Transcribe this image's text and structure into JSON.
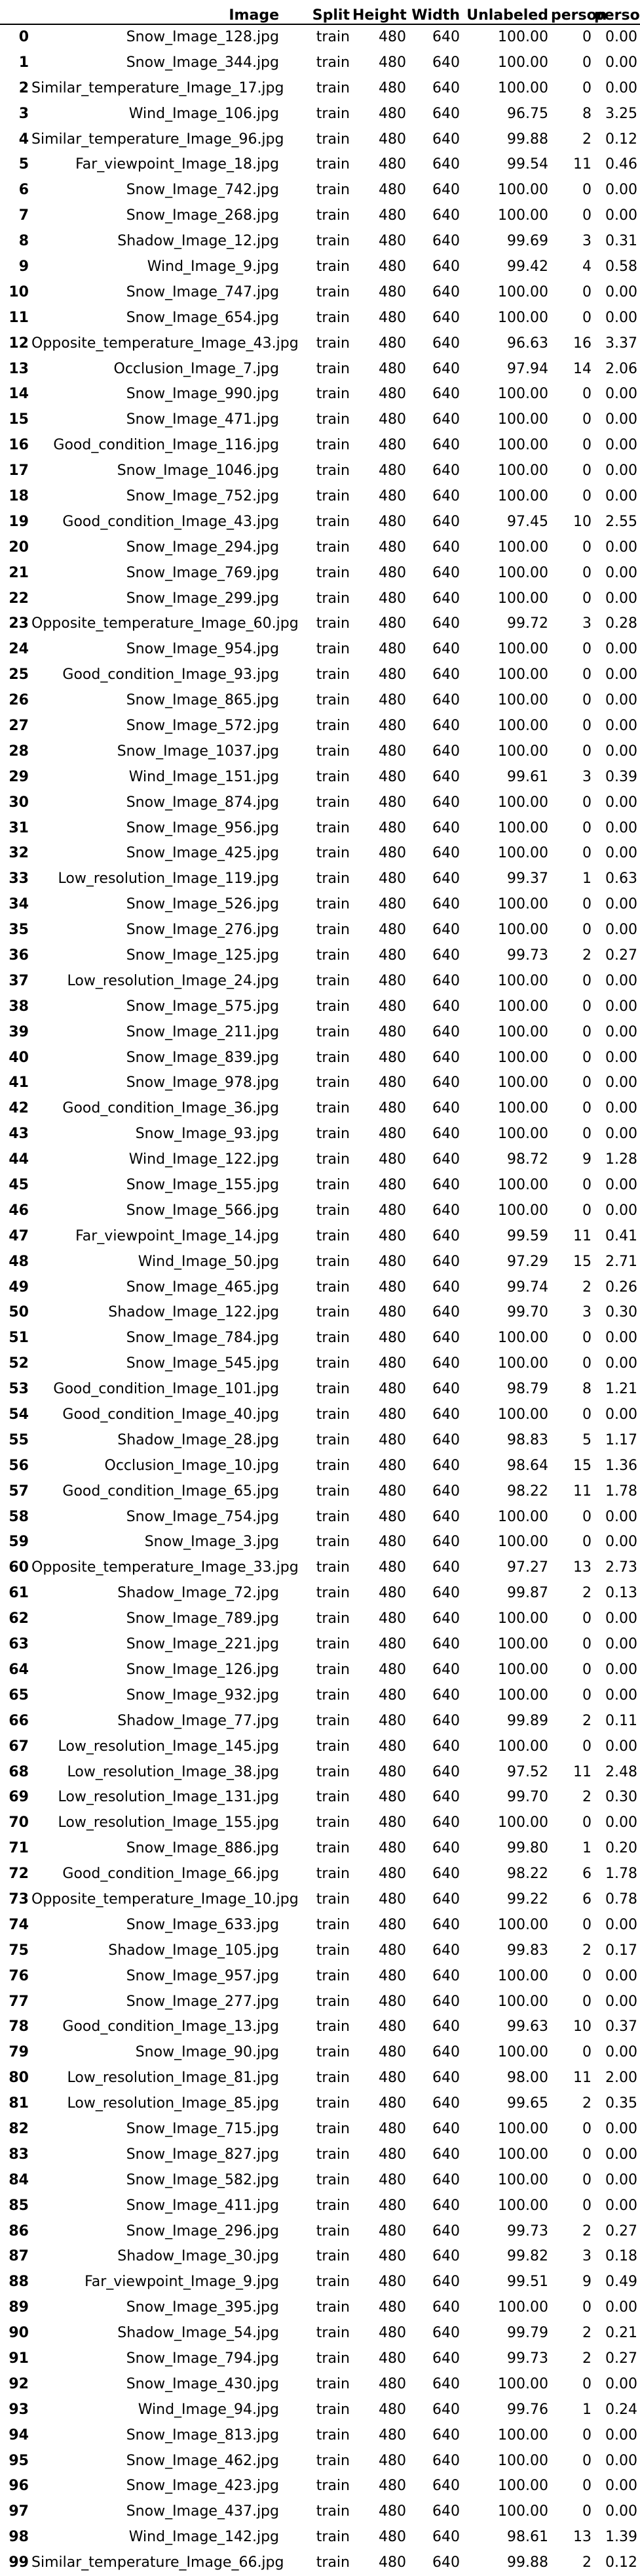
{
  "columns": [
    "",
    "Image",
    "Split",
    "Height",
    "Width",
    "Unlabeled",
    "person",
    "person"
  ],
  "rows": [
    [
      "0",
      "Snow_Image_128.jpg",
      "train",
      "480",
      "640",
      "100.00",
      "0",
      "0.00"
    ],
    [
      "1",
      "Snow_Image_344.jpg",
      "train",
      "480",
      "640",
      "100.00",
      "0",
      "0.00"
    ],
    [
      "2",
      "Similar_temperature_Image_17.jpg",
      "train",
      "480",
      "640",
      "100.00",
      "0",
      "0.00"
    ],
    [
      "3",
      "Wind_Image_106.jpg",
      "train",
      "480",
      "640",
      "96.75",
      "8",
      "3.25"
    ],
    [
      "4",
      "Similar_temperature_Image_96.jpg",
      "train",
      "480",
      "640",
      "99.88",
      "2",
      "0.12"
    ],
    [
      "5",
      "Far_viewpoint_Image_18.jpg",
      "train",
      "480",
      "640",
      "99.54",
      "11",
      "0.46"
    ],
    [
      "6",
      "Snow_Image_742.jpg",
      "train",
      "480",
      "640",
      "100.00",
      "0",
      "0.00"
    ],
    [
      "7",
      "Snow_Image_268.jpg",
      "train",
      "480",
      "640",
      "100.00",
      "0",
      "0.00"
    ],
    [
      "8",
      "Shadow_Image_12.jpg",
      "train",
      "480",
      "640",
      "99.69",
      "3",
      "0.31"
    ],
    [
      "9",
      "Wind_Image_9.jpg",
      "train",
      "480",
      "640",
      "99.42",
      "4",
      "0.58"
    ],
    [
      "10",
      "Snow_Image_747.jpg",
      "train",
      "480",
      "640",
      "100.00",
      "0",
      "0.00"
    ],
    [
      "11",
      "Snow_Image_654.jpg",
      "train",
      "480",
      "640",
      "100.00",
      "0",
      "0.00"
    ],
    [
      "12",
      "Opposite_temperature_Image_43.jpg",
      "train",
      "480",
      "640",
      "96.63",
      "16",
      "3.37"
    ],
    [
      "13",
      "Occlusion_Image_7.jpg",
      "train",
      "480",
      "640",
      "97.94",
      "14",
      "2.06"
    ],
    [
      "14",
      "Snow_Image_990.jpg",
      "train",
      "480",
      "640",
      "100.00",
      "0",
      "0.00"
    ],
    [
      "15",
      "Snow_Image_471.jpg",
      "train",
      "480",
      "640",
      "100.00",
      "0",
      "0.00"
    ],
    [
      "16",
      "Good_condition_Image_116.jpg",
      "train",
      "480",
      "640",
      "100.00",
      "0",
      "0.00"
    ],
    [
      "17",
      "Snow_Image_1046.jpg",
      "train",
      "480",
      "640",
      "100.00",
      "0",
      "0.00"
    ],
    [
      "18",
      "Snow_Image_752.jpg",
      "train",
      "480",
      "640",
      "100.00",
      "0",
      "0.00"
    ],
    [
      "19",
      "Good_condition_Image_43.jpg",
      "train",
      "480",
      "640",
      "97.45",
      "10",
      "2.55"
    ],
    [
      "20",
      "Snow_Image_294.jpg",
      "train",
      "480",
      "640",
      "100.00",
      "0",
      "0.00"
    ],
    [
      "21",
      "Snow_Image_769.jpg",
      "train",
      "480",
      "640",
      "100.00",
      "0",
      "0.00"
    ],
    [
      "22",
      "Snow_Image_299.jpg",
      "train",
      "480",
      "640",
      "100.00",
      "0",
      "0.00"
    ],
    [
      "23",
      "Opposite_temperature_Image_60.jpg",
      "train",
      "480",
      "640",
      "99.72",
      "3",
      "0.28"
    ],
    [
      "24",
      "Snow_Image_954.jpg",
      "train",
      "480",
      "640",
      "100.00",
      "0",
      "0.00"
    ],
    [
      "25",
      "Good_condition_Image_93.jpg",
      "train",
      "480",
      "640",
      "100.00",
      "0",
      "0.00"
    ],
    [
      "26",
      "Snow_Image_865.jpg",
      "train",
      "480",
      "640",
      "100.00",
      "0",
      "0.00"
    ],
    [
      "27",
      "Snow_Image_572.jpg",
      "train",
      "480",
      "640",
      "100.00",
      "0",
      "0.00"
    ],
    [
      "28",
      "Snow_Image_1037.jpg",
      "train",
      "480",
      "640",
      "100.00",
      "0",
      "0.00"
    ],
    [
      "29",
      "Wind_Image_151.jpg",
      "train",
      "480",
      "640",
      "99.61",
      "3",
      "0.39"
    ],
    [
      "30",
      "Snow_Image_874.jpg",
      "train",
      "480",
      "640",
      "100.00",
      "0",
      "0.00"
    ],
    [
      "31",
      "Snow_Image_956.jpg",
      "train",
      "480",
      "640",
      "100.00",
      "0",
      "0.00"
    ],
    [
      "32",
      "Snow_Image_425.jpg",
      "train",
      "480",
      "640",
      "100.00",
      "0",
      "0.00"
    ],
    [
      "33",
      "Low_resolution_Image_119.jpg",
      "train",
      "480",
      "640",
      "99.37",
      "1",
      "0.63"
    ],
    [
      "34",
      "Snow_Image_526.jpg",
      "train",
      "480",
      "640",
      "100.00",
      "0",
      "0.00"
    ],
    [
      "35",
      "Snow_Image_276.jpg",
      "train",
      "480",
      "640",
      "100.00",
      "0",
      "0.00"
    ],
    [
      "36",
      "Snow_Image_125.jpg",
      "train",
      "480",
      "640",
      "99.73",
      "2",
      "0.27"
    ],
    [
      "37",
      "Low_resolution_Image_24.jpg",
      "train",
      "480",
      "640",
      "100.00",
      "0",
      "0.00"
    ],
    [
      "38",
      "Snow_Image_575.jpg",
      "train",
      "480",
      "640",
      "100.00",
      "0",
      "0.00"
    ],
    [
      "39",
      "Snow_Image_211.jpg",
      "train",
      "480",
      "640",
      "100.00",
      "0",
      "0.00"
    ],
    [
      "40",
      "Snow_Image_839.jpg",
      "train",
      "480",
      "640",
      "100.00",
      "0",
      "0.00"
    ],
    [
      "41",
      "Snow_Image_978.jpg",
      "train",
      "480",
      "640",
      "100.00",
      "0",
      "0.00"
    ],
    [
      "42",
      "Good_condition_Image_36.jpg",
      "train",
      "480",
      "640",
      "100.00",
      "0",
      "0.00"
    ],
    [
      "43",
      "Snow_Image_93.jpg",
      "train",
      "480",
      "640",
      "100.00",
      "0",
      "0.00"
    ],
    [
      "44",
      "Wind_Image_122.jpg",
      "train",
      "480",
      "640",
      "98.72",
      "9",
      "1.28"
    ],
    [
      "45",
      "Snow_Image_155.jpg",
      "train",
      "480",
      "640",
      "100.00",
      "0",
      "0.00"
    ],
    [
      "46",
      "Snow_Image_566.jpg",
      "train",
      "480",
      "640",
      "100.00",
      "0",
      "0.00"
    ],
    [
      "47",
      "Far_viewpoint_Image_14.jpg",
      "train",
      "480",
      "640",
      "99.59",
      "11",
      "0.41"
    ],
    [
      "48",
      "Wind_Image_50.jpg",
      "train",
      "480",
      "640",
      "97.29",
      "15",
      "2.71"
    ],
    [
      "49",
      "Snow_Image_465.jpg",
      "train",
      "480",
      "640",
      "99.74",
      "2",
      "0.26"
    ],
    [
      "50",
      "Shadow_Image_122.jpg",
      "train",
      "480",
      "640",
      "99.70",
      "3",
      "0.30"
    ],
    [
      "51",
      "Snow_Image_784.jpg",
      "train",
      "480",
      "640",
      "100.00",
      "0",
      "0.00"
    ],
    [
      "52",
      "Snow_Image_545.jpg",
      "train",
      "480",
      "640",
      "100.00",
      "0",
      "0.00"
    ],
    [
      "53",
      "Good_condition_Image_101.jpg",
      "train",
      "480",
      "640",
      "98.79",
      "8",
      "1.21"
    ],
    [
      "54",
      "Good_condition_Image_40.jpg",
      "train",
      "480",
      "640",
      "100.00",
      "0",
      "0.00"
    ],
    [
      "55",
      "Shadow_Image_28.jpg",
      "train",
      "480",
      "640",
      "98.83",
      "5",
      "1.17"
    ],
    [
      "56",
      "Occlusion_Image_10.jpg",
      "train",
      "480",
      "640",
      "98.64",
      "15",
      "1.36"
    ],
    [
      "57",
      "Good_condition_Image_65.jpg",
      "train",
      "480",
      "640",
      "98.22",
      "11",
      "1.78"
    ],
    [
      "58",
      "Snow_Image_754.jpg",
      "train",
      "480",
      "640",
      "100.00",
      "0",
      "0.00"
    ],
    [
      "59",
      "Snow_Image_3.jpg",
      "train",
      "480",
      "640",
      "100.00",
      "0",
      "0.00"
    ],
    [
      "60",
      "Opposite_temperature_Image_33.jpg",
      "train",
      "480",
      "640",
      "97.27",
      "13",
      "2.73"
    ],
    [
      "61",
      "Shadow_Image_72.jpg",
      "train",
      "480",
      "640",
      "99.87",
      "2",
      "0.13"
    ],
    [
      "62",
      "Snow_Image_789.jpg",
      "train",
      "480",
      "640",
      "100.00",
      "0",
      "0.00"
    ],
    [
      "63",
      "Snow_Image_221.jpg",
      "train",
      "480",
      "640",
      "100.00",
      "0",
      "0.00"
    ],
    [
      "64",
      "Snow_Image_126.jpg",
      "train",
      "480",
      "640",
      "100.00",
      "0",
      "0.00"
    ],
    [
      "65",
      "Snow_Image_932.jpg",
      "train",
      "480",
      "640",
      "100.00",
      "0",
      "0.00"
    ],
    [
      "66",
      "Shadow_Image_77.jpg",
      "train",
      "480",
      "640",
      "99.89",
      "2",
      "0.11"
    ],
    [
      "67",
      "Low_resolution_Image_145.jpg",
      "train",
      "480",
      "640",
      "100.00",
      "0",
      "0.00"
    ],
    [
      "68",
      "Low_resolution_Image_38.jpg",
      "train",
      "480",
      "640",
      "97.52",
      "11",
      "2.48"
    ],
    [
      "69",
      "Low_resolution_Image_131.jpg",
      "train",
      "480",
      "640",
      "99.70",
      "2",
      "0.30"
    ],
    [
      "70",
      "Low_resolution_Image_155.jpg",
      "train",
      "480",
      "640",
      "100.00",
      "0",
      "0.00"
    ],
    [
      "71",
      "Snow_Image_886.jpg",
      "train",
      "480",
      "640",
      "99.80",
      "1",
      "0.20"
    ],
    [
      "72",
      "Good_condition_Image_66.jpg",
      "train",
      "480",
      "640",
      "98.22",
      "6",
      "1.78"
    ],
    [
      "73",
      "Opposite_temperature_Image_10.jpg",
      "train",
      "480",
      "640",
      "99.22",
      "6",
      "0.78"
    ],
    [
      "74",
      "Snow_Image_633.jpg",
      "train",
      "480",
      "640",
      "100.00",
      "0",
      "0.00"
    ],
    [
      "75",
      "Shadow_Image_105.jpg",
      "train",
      "480",
      "640",
      "99.83",
      "2",
      "0.17"
    ],
    [
      "76",
      "Snow_Image_957.jpg",
      "train",
      "480",
      "640",
      "100.00",
      "0",
      "0.00"
    ],
    [
      "77",
      "Snow_Image_277.jpg",
      "train",
      "480",
      "640",
      "100.00",
      "0",
      "0.00"
    ],
    [
      "78",
      "Good_condition_Image_13.jpg",
      "train",
      "480",
      "640",
      "99.63",
      "10",
      "0.37"
    ],
    [
      "79",
      "Snow_Image_90.jpg",
      "train",
      "480",
      "640",
      "100.00",
      "0",
      "0.00"
    ],
    [
      "80",
      "Low_resolution_Image_81.jpg",
      "train",
      "480",
      "640",
      "98.00",
      "11",
      "2.00"
    ],
    [
      "81",
      "Low_resolution_Image_85.jpg",
      "train",
      "480",
      "640",
      "99.65",
      "2",
      "0.35"
    ],
    [
      "82",
      "Snow_Image_715.jpg",
      "train",
      "480",
      "640",
      "100.00",
      "0",
      "0.00"
    ],
    [
      "83",
      "Snow_Image_827.jpg",
      "train",
      "480",
      "640",
      "100.00",
      "0",
      "0.00"
    ],
    [
      "84",
      "Snow_Image_582.jpg",
      "train",
      "480",
      "640",
      "100.00",
      "0",
      "0.00"
    ],
    [
      "85",
      "Snow_Image_411.jpg",
      "train",
      "480",
      "640",
      "100.00",
      "0",
      "0.00"
    ],
    [
      "86",
      "Snow_Image_296.jpg",
      "train",
      "480",
      "640",
      "99.73",
      "2",
      "0.27"
    ],
    [
      "87",
      "Shadow_Image_30.jpg",
      "train",
      "480",
      "640",
      "99.82",
      "3",
      "0.18"
    ],
    [
      "88",
      "Far_viewpoint_Image_9.jpg",
      "train",
      "480",
      "640",
      "99.51",
      "9",
      "0.49"
    ],
    [
      "89",
      "Snow_Image_395.jpg",
      "train",
      "480",
      "640",
      "100.00",
      "0",
      "0.00"
    ],
    [
      "90",
      "Shadow_Image_54.jpg",
      "train",
      "480",
      "640",
      "99.79",
      "2",
      "0.21"
    ],
    [
      "91",
      "Snow_Image_794.jpg",
      "train",
      "480",
      "640",
      "99.73",
      "2",
      "0.27"
    ],
    [
      "92",
      "Snow_Image_430.jpg",
      "train",
      "480",
      "640",
      "100.00",
      "0",
      "0.00"
    ],
    [
      "93",
      "Wind_Image_94.jpg",
      "train",
      "480",
      "640",
      "99.76",
      "1",
      "0.24"
    ],
    [
      "94",
      "Snow_Image_813.jpg",
      "train",
      "480",
      "640",
      "100.00",
      "0",
      "0.00"
    ],
    [
      "95",
      "Snow_Image_462.jpg",
      "train",
      "480",
      "640",
      "100.00",
      "0",
      "0.00"
    ],
    [
      "96",
      "Snow_Image_423.jpg",
      "train",
      "480",
      "640",
      "100.00",
      "0",
      "0.00"
    ],
    [
      "97",
      "Snow_Image_437.jpg",
      "train",
      "480",
      "640",
      "100.00",
      "0",
      "0.00"
    ],
    [
      "98",
      "Wind_Image_142.jpg",
      "train",
      "480",
      "640",
      "98.61",
      "13",
      "1.39"
    ],
    [
      "99",
      "Similar_temperature_Image_66.jpg",
      "train",
      "480",
      "640",
      "99.88",
      "2",
      "0.12"
    ]
  ]
}
